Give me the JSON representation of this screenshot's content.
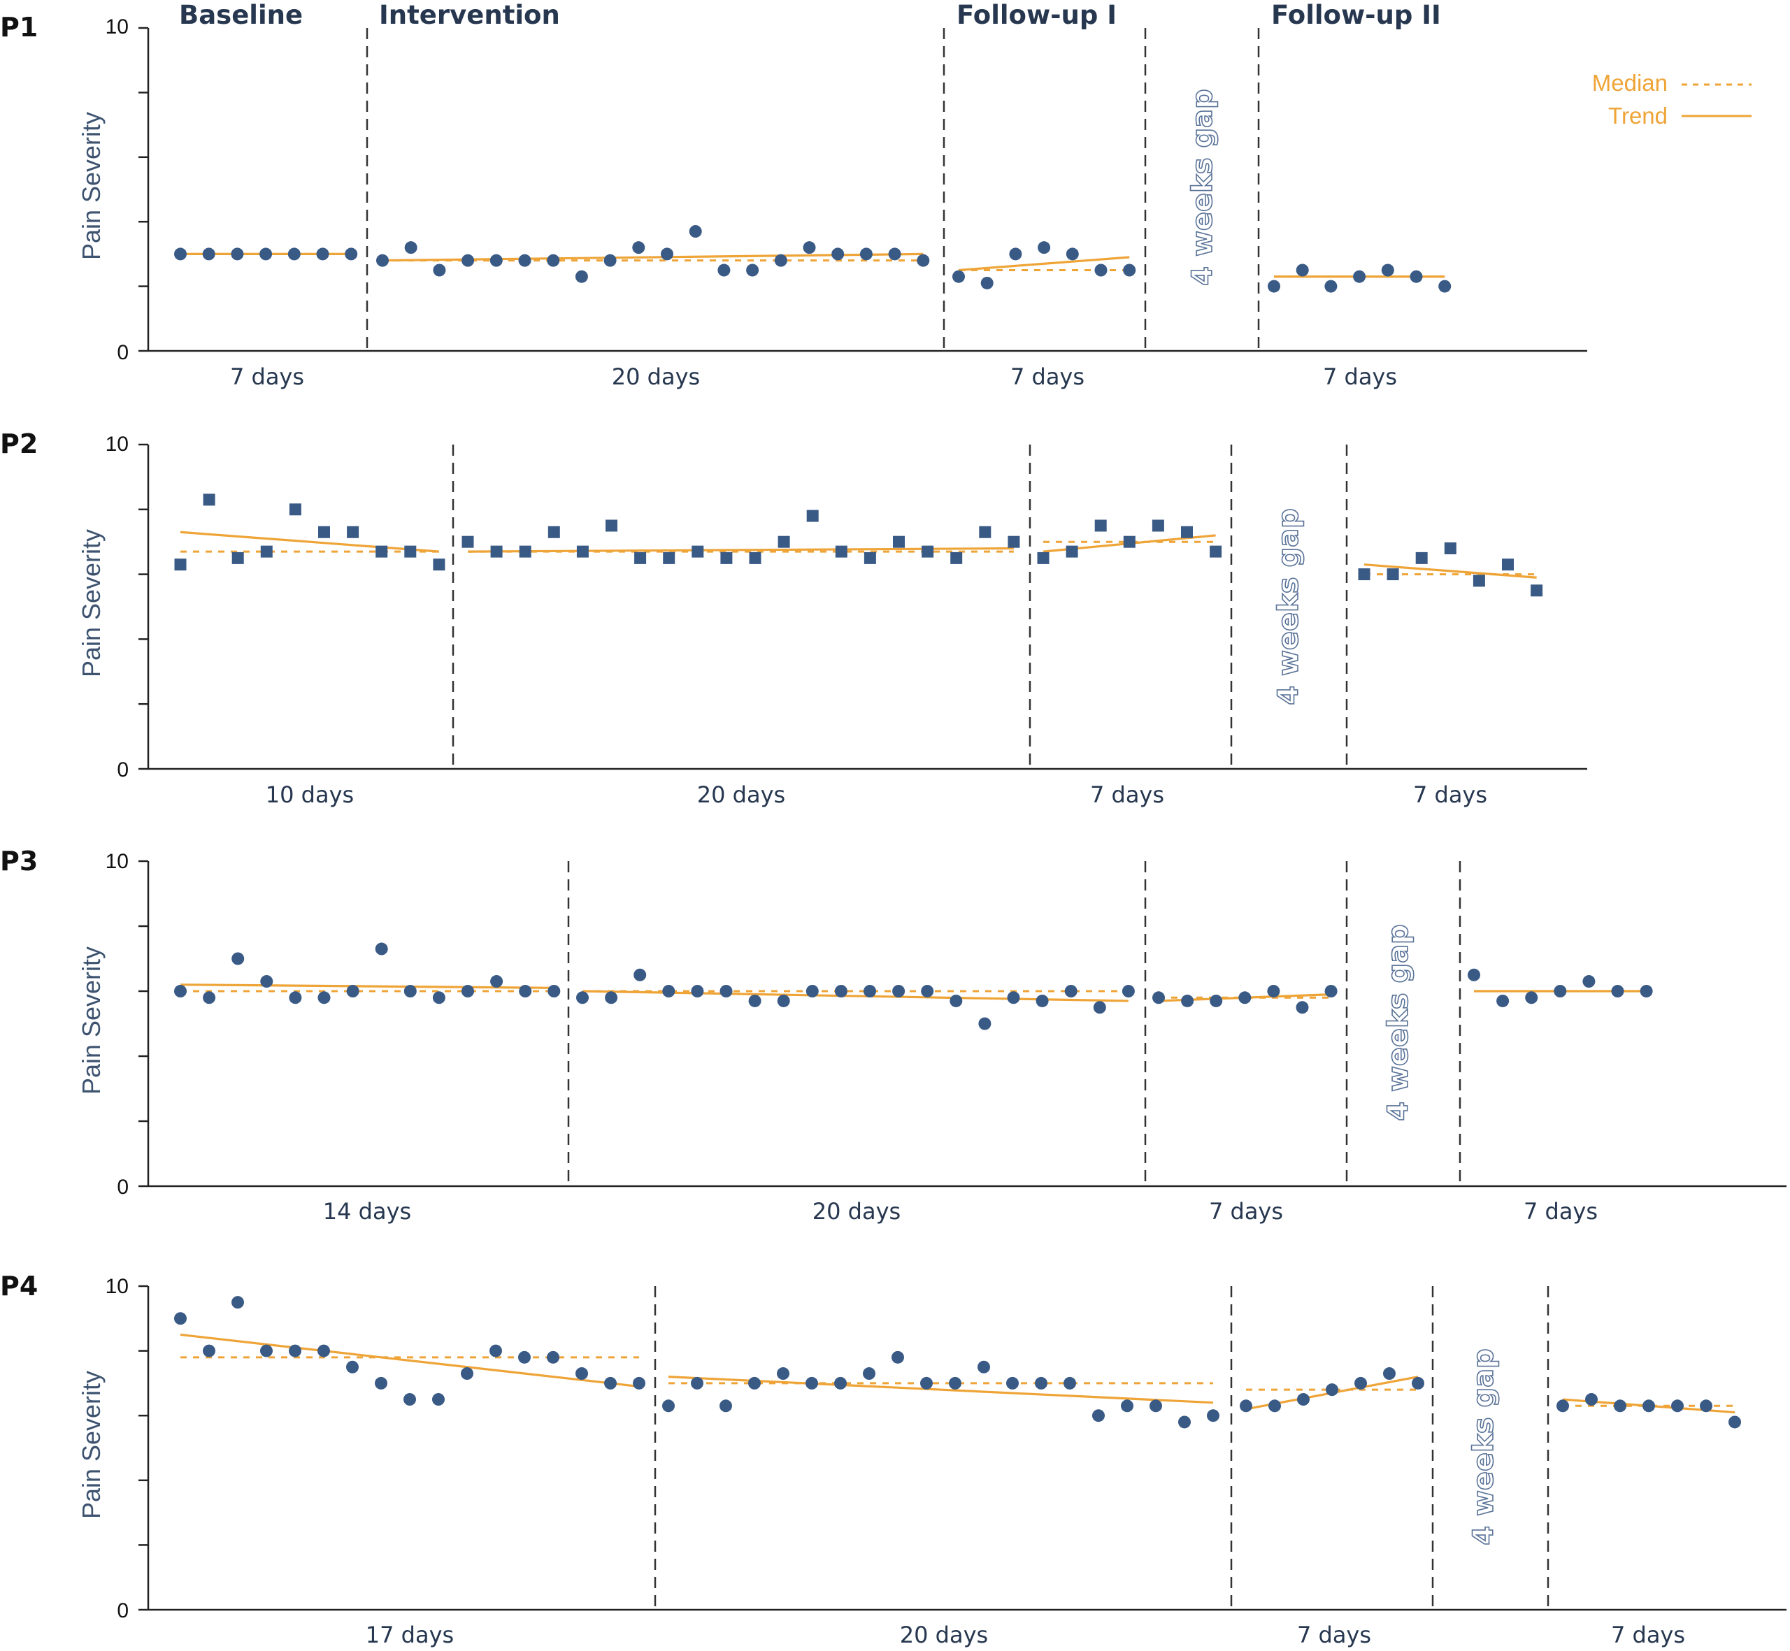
{
  "legend": {
    "median_label": "Median",
    "trend_label": "Trend",
    "placement": "top-right"
  },
  "colors": {
    "points": "#3a5a86",
    "lines": "#eea437",
    "axis": "#222222",
    "divider": "#333333",
    "gap_text": "#5a7398"
  },
  "phases": [
    "Baseline",
    "Intervention",
    "Follow-up I",
    "Follow-up II"
  ],
  "gap_label": "4 weeks gap",
  "chart_data": [
    {
      "type": "scatter",
      "panel": "P1",
      "ylabel": "Pain Severity",
      "ylim": [
        0,
        10
      ],
      "yticks": [
        "0",
        "10"
      ],
      "marker": "circle",
      "durations": [
        "7 days",
        "20 days",
        "7 days",
        "7 days"
      ],
      "phases": [
        {
          "name": "Baseline",
          "values": [
            3,
            3,
            3,
            3,
            3,
            3,
            3
          ],
          "median": 3,
          "trend": [
            3.0,
            3.0
          ]
        },
        {
          "name": "Intervention",
          "values": [
            2.8,
            3.2,
            2.5,
            2.8,
            2.8,
            2.8,
            2.8,
            2.3,
            2.8,
            3.2,
            3.0,
            3.7,
            2.5,
            2.5,
            2.8,
            3.2,
            3.0,
            3.0,
            3.0,
            2.8
          ],
          "median": 2.8,
          "trend": [
            2.8,
            3.0
          ]
        },
        {
          "name": "Follow-up I",
          "values": [
            2.3,
            2.1,
            3.0,
            3.2,
            3.0,
            2.5,
            2.5
          ],
          "median": 2.5,
          "trend": [
            2.5,
            2.9
          ]
        },
        {
          "name": "Follow-up II",
          "values": [
            2.0,
            2.5,
            2.0,
            2.3,
            2.5,
            2.3,
            2.0
          ],
          "median": 2.3,
          "trend": [
            2.3,
            2.3
          ]
        }
      ]
    },
    {
      "type": "scatter",
      "panel": "P2",
      "ylabel": "Pain Severity",
      "ylim": [
        0,
        10
      ],
      "yticks": [
        "0",
        "10"
      ],
      "marker": "square",
      "durations": [
        "10 days",
        "20 days",
        "7 days",
        "7 days"
      ],
      "phases": [
        {
          "name": "Baseline",
          "values": [
            6.3,
            8.3,
            6.5,
            6.7,
            8.0,
            7.3,
            7.3,
            6.7,
            6.7,
            6.3
          ],
          "median": 6.7,
          "trend": [
            7.3,
            6.7
          ]
        },
        {
          "name": "Intervention",
          "values": [
            7.0,
            6.7,
            6.7,
            7.3,
            6.7,
            7.5,
            6.5,
            6.5,
            6.7,
            6.5,
            6.5,
            7.0,
            7.8,
            6.7,
            6.5,
            7.0,
            6.7,
            6.5,
            7.3,
            7.0
          ],
          "median": 6.7,
          "trend": [
            6.7,
            6.8
          ]
        },
        {
          "name": "Follow-up I",
          "values": [
            6.5,
            6.7,
            7.5,
            7.0,
            7.5,
            7.3,
            6.7
          ],
          "median": 7.0,
          "trend": [
            6.7,
            7.2
          ]
        },
        {
          "name": "Follow-up II",
          "values": [
            6.0,
            6.0,
            6.5,
            6.8,
            5.8,
            6.3,
            5.5
          ],
          "median": 6.0,
          "trend": [
            6.3,
            5.9
          ]
        }
      ]
    },
    {
      "type": "scatter",
      "panel": "P3",
      "ylabel": "Pain Severity",
      "ylim": [
        0,
        10
      ],
      "yticks": [
        "0",
        "10"
      ],
      "marker": "circle",
      "durations": [
        "14 days",
        "20 days",
        "7 days",
        "7 days"
      ],
      "phases": [
        {
          "name": "Baseline",
          "values": [
            6.0,
            5.8,
            7.0,
            6.3,
            5.8,
            5.8,
            6.0,
            7.3,
            6.0,
            5.8,
            6.0,
            6.3,
            6.0,
            6.0
          ],
          "median": 6.0,
          "trend": [
            6.2,
            6.1
          ]
        },
        {
          "name": "Intervention",
          "values": [
            5.8,
            5.8,
            6.5,
            6.0,
            6.0,
            6.0,
            5.7,
            5.7,
            6.0,
            6.0,
            6.0,
            6.0,
            6.0,
            5.7,
            5.0,
            5.8,
            5.7,
            6.0,
            5.5,
            6.0
          ],
          "median": 6.0,
          "trend": [
            6.0,
            5.7
          ]
        },
        {
          "name": "Follow-up I",
          "values": [
            5.8,
            5.7,
            5.7,
            5.8,
            6.0,
            5.5,
            6.0
          ],
          "median": 5.8,
          "trend": [
            5.7,
            5.9
          ]
        },
        {
          "name": "Follow-up II",
          "values": [
            6.5,
            5.7,
            5.8,
            6.0,
            6.3,
            6.0,
            6.0
          ],
          "median": 6.0,
          "trend": [
            6.0,
            6.0
          ]
        }
      ]
    },
    {
      "type": "scatter",
      "panel": "P4",
      "ylabel": "Pain Severity",
      "ylim": [
        0,
        10
      ],
      "yticks": [
        "0",
        "10"
      ],
      "marker": "circle",
      "durations": [
        "17 days",
        "20 days",
        "7 days",
        "7 days"
      ],
      "phases": [
        {
          "name": "Baseline",
          "values": [
            9.0,
            8.0,
            9.5,
            8.0,
            8.0,
            8.0,
            7.5,
            7.0,
            6.5,
            6.5,
            7.3,
            8.0,
            7.8,
            7.8,
            7.3,
            7.0,
            7.0
          ],
          "median": 7.8,
          "trend": [
            8.5,
            6.9
          ]
        },
        {
          "name": "Intervention",
          "values": [
            6.3,
            7.0,
            6.3,
            7.0,
            7.3,
            7.0,
            7.0,
            7.3,
            7.8,
            7.0,
            7.0,
            7.5,
            7.0,
            7.0,
            7.0,
            6.0,
            6.3,
            6.3,
            5.8,
            6.0
          ],
          "median": 7.0,
          "trend": [
            7.2,
            6.4
          ]
        },
        {
          "name": "Follow-up I",
          "values": [
            6.3,
            6.3,
            6.5,
            6.8,
            7.0,
            7.3,
            7.0
          ],
          "median": 6.8,
          "trend": [
            6.2,
            7.2
          ]
        },
        {
          "name": "Follow-up II",
          "values": [
            6.3,
            6.5,
            6.3,
            6.3,
            6.3,
            6.3,
            5.8
          ],
          "median": 6.3,
          "trend": [
            6.5,
            6.1
          ]
        }
      ]
    }
  ]
}
